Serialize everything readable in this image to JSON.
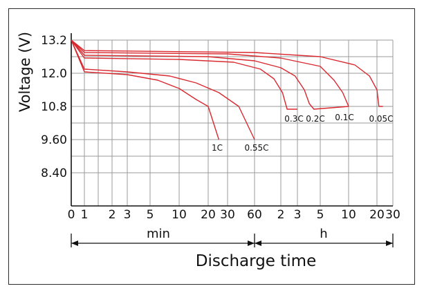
{
  "chart_data": {
    "type": "line",
    "xlabel": "Discharge time",
    "ylabel": "Voltage (V)",
    "xscale": "log-time (min then h)",
    "x_units": "min",
    "ylim": [
      8.4,
      13.2
    ],
    "grid": true,
    "y_ticks": [
      "13.2",
      "12.0",
      "10.8",
      "9.60",
      "8.40"
    ],
    "y_tick_values": [
      13.2,
      12.0,
      10.8,
      9.6,
      8.4
    ],
    "x_ticks_min": [
      "0",
      "1",
      "2",
      "3",
      "5",
      "10",
      "20",
      "30",
      "60"
    ],
    "x_ticks_h": [
      "2",
      "3",
      "5",
      "10",
      "20",
      "30"
    ],
    "x_tick_values_min": [
      0,
      1,
      2,
      3,
      5,
      10,
      20,
      30,
      60,
      120,
      180,
      300,
      600,
      1200,
      1800
    ],
    "segment_labels": {
      "min": "min",
      "h": "h"
    },
    "series": [
      {
        "name": "1C",
        "points": [
          [
            0,
            13.2
          ],
          [
            1,
            12.05
          ],
          [
            3,
            11.95
          ],
          [
            6,
            11.75
          ],
          [
            10,
            11.45
          ],
          [
            15,
            11.05
          ],
          [
            20,
            10.8
          ],
          [
            25,
            9.6
          ]
        ]
      },
      {
        "name": "0.55C",
        "points": [
          [
            0,
            13.2
          ],
          [
            1,
            12.15
          ],
          [
            3,
            12.05
          ],
          [
            8,
            11.9
          ],
          [
            15,
            11.65
          ],
          [
            25,
            11.3
          ],
          [
            40,
            10.8
          ],
          [
            60,
            9.6
          ]
        ]
      },
      {
        "name": "0.3C",
        "points": [
          [
            0,
            13.2
          ],
          [
            1,
            12.55
          ],
          [
            10,
            12.5
          ],
          [
            35,
            12.4
          ],
          [
            70,
            12.15
          ],
          [
            100,
            11.8
          ],
          [
            125,
            11.3
          ],
          [
            140,
            10.7
          ],
          [
            180,
            10.7
          ]
        ]
      },
      {
        "name": "0.2C",
        "points": [
          [
            0,
            13.2
          ],
          [
            1,
            12.65
          ],
          [
            20,
            12.6
          ],
          [
            60,
            12.45
          ],
          [
            120,
            12.2
          ],
          [
            170,
            11.9
          ],
          [
            210,
            11.4
          ],
          [
            235,
            10.9
          ],
          [
            260,
            10.7
          ],
          [
            600,
            10.8
          ]
        ]
      },
      {
        "name": "0.1C",
        "points": [
          [
            0,
            13.2
          ],
          [
            1,
            12.75
          ],
          [
            30,
            12.7
          ],
          [
            120,
            12.55
          ],
          [
            300,
            12.25
          ],
          [
            420,
            11.75
          ],
          [
            520,
            11.3
          ],
          [
            600,
            10.8
          ]
        ]
      },
      {
        "name": "0.05C",
        "points": [
          [
            0,
            13.2
          ],
          [
            1,
            12.82
          ],
          [
            60,
            12.75
          ],
          [
            300,
            12.6
          ],
          [
            700,
            12.3
          ],
          [
            1000,
            11.9
          ],
          [
            1200,
            11.4
          ],
          [
            1260,
            10.8
          ],
          [
            1400,
            10.8
          ]
        ]
      }
    ]
  },
  "colors": {
    "curve": "#d9282f",
    "grid": "#9a9a9a",
    "axis": "#111111",
    "frame": "#2b2b2b"
  }
}
